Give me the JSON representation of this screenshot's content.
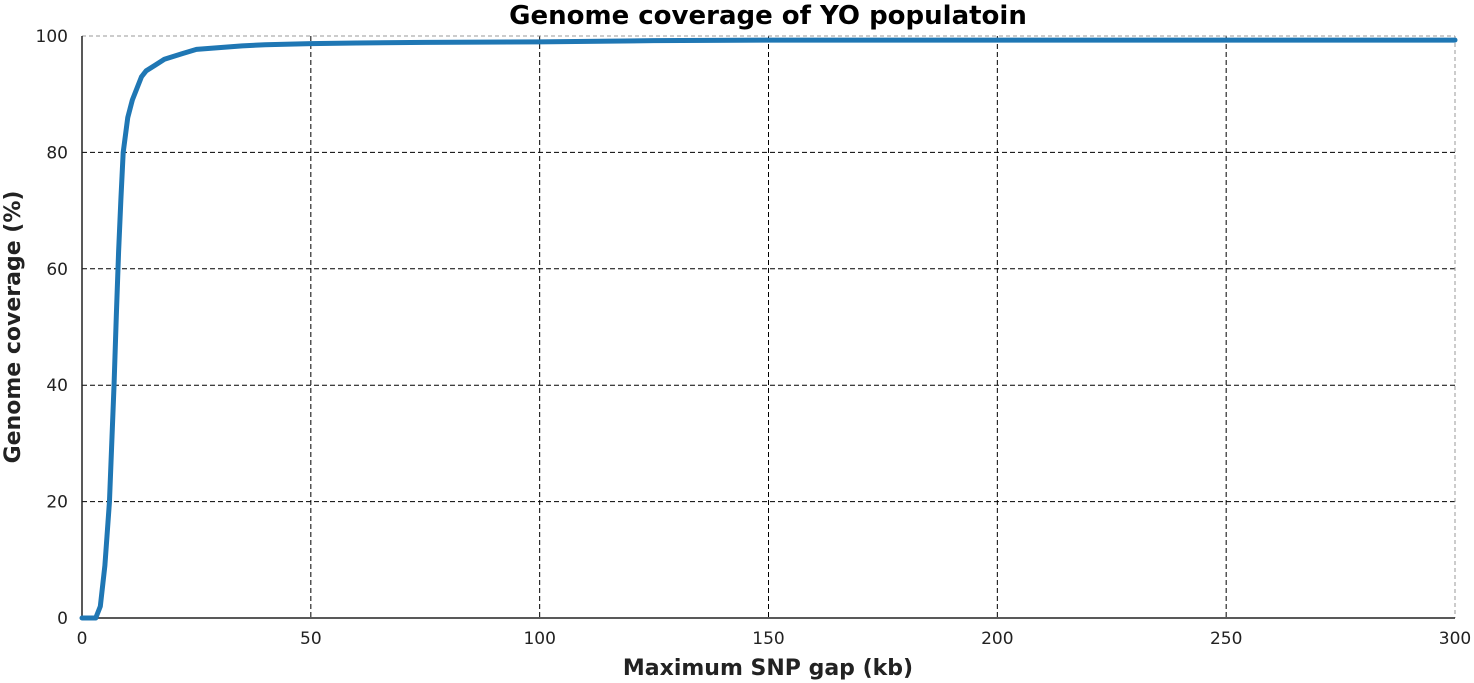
{
  "chart_data": {
    "type": "line",
    "title": "Genome coverage of YO populatoin",
    "xlabel": "Maximum SNP gap (kb)",
    "ylabel": "Genome coverage (%)",
    "xlim": [
      0,
      300
    ],
    "ylim": [
      0,
      100
    ],
    "xticks": [
      0,
      50,
      100,
      150,
      200,
      250,
      300
    ],
    "yticks": [
      0,
      20,
      40,
      60,
      80,
      100
    ],
    "xtick_labels": [
      "0",
      "50",
      "100",
      "150",
      "200",
      "250",
      "300"
    ],
    "ytick_labels": [
      "0",
      "20",
      "40",
      "60",
      "80",
      "100"
    ],
    "grid": true,
    "line_color": "#1f77b4",
    "series": [
      {
        "x": [
          0,
          1,
          2,
          3,
          4,
          5,
          6,
          7,
          7.5,
          8,
          8.5,
          9,
          10,
          11,
          12,
          13,
          14,
          16,
          18,
          20,
          22,
          25,
          30,
          35,
          40,
          50,
          60,
          75,
          100,
          125,
          150,
          200,
          250,
          300
        ],
        "y": [
          0,
          0,
          0,
          0,
          2,
          9,
          20,
          40,
          52,
          63,
          72,
          80,
          86,
          89,
          91,
          93,
          94,
          95,
          96,
          96.5,
          97,
          97.7,
          98,
          98.3,
          98.5,
          98.7,
          98.8,
          98.9,
          99.0,
          99.2,
          99.3,
          99.3,
          99.3,
          99.3
        ]
      }
    ]
  }
}
